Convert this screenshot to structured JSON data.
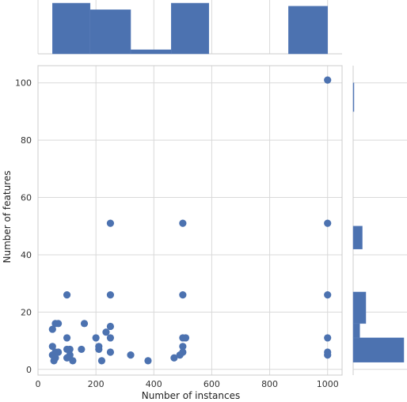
{
  "chart_data": {
    "type": "scatter",
    "title": "",
    "xlabel": "Number of instances",
    "ylabel": "Number of features",
    "xlim": [
      0,
      1050
    ],
    "ylim": [
      -2,
      106
    ],
    "xticks": [
      0,
      200,
      400,
      600,
      800,
      1000
    ],
    "yticks": [
      0,
      20,
      40,
      60,
      80,
      100
    ],
    "grid": true,
    "color": "#4c72b0",
    "points": [
      [
        1000,
        101
      ],
      [
        250,
        51
      ],
      [
        500,
        51
      ],
      [
        1000,
        51
      ],
      [
        100,
        26
      ],
      [
        250,
        26
      ],
      [
        500,
        26
      ],
      [
        1000,
        26
      ],
      [
        60,
        16
      ],
      [
        70,
        16
      ],
      [
        160,
        16
      ],
      [
        50,
        14
      ],
      [
        250,
        15
      ],
      [
        235,
        13
      ],
      [
        100,
        11
      ],
      [
        200,
        11
      ],
      [
        250,
        11
      ],
      [
        500,
        11
      ],
      [
        510,
        11
      ],
      [
        1000,
        11
      ],
      [
        50,
        8
      ],
      [
        100,
        7
      ],
      [
        110,
        7
      ],
      [
        150,
        7
      ],
      [
        210,
        7
      ],
      [
        210,
        8
      ],
      [
        500,
        8
      ],
      [
        60,
        6
      ],
      [
        70,
        6
      ],
      [
        250,
        6
      ],
      [
        500,
        6
      ],
      [
        1000,
        6
      ],
      [
        1000,
        5
      ],
      [
        50,
        5
      ],
      [
        100,
        4
      ],
      [
        120,
        3
      ],
      [
        55,
        3
      ],
      [
        220,
        3
      ],
      [
        320,
        5
      ],
      [
        380,
        3
      ],
      [
        470,
        4
      ],
      [
        490,
        5
      ],
      [
        60,
        4
      ],
      [
        110,
        5
      ]
    ],
    "marginal_x": {
      "bins": [
        [
          50,
          180
        ],
        [
          180,
          320
        ],
        [
          320,
          460
        ],
        [
          460,
          590
        ],
        [
          865,
          1000
        ]
      ],
      "heights": [
        1.0,
        0.87,
        0.08,
        1.0,
        0.94
      ]
    },
    "marginal_y": {
      "bins": [
        [
          2.5,
          11
        ],
        [
          11,
          16
        ],
        [
          16,
          27
        ],
        [
          42,
          50
        ],
        [
          90,
          100
        ]
      ],
      "widths": [
        1.0,
        0.13,
        0.25,
        0.18,
        0.01
      ]
    }
  }
}
